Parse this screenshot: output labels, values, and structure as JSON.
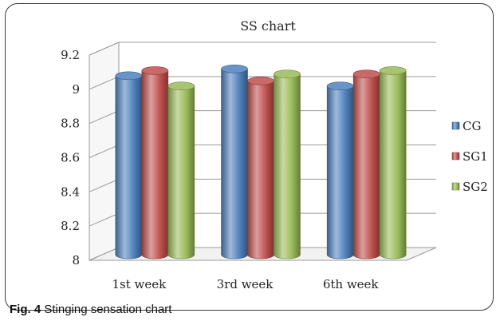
{
  "caption": {
    "label": "Fig. 4",
    "text": "Stinging sensation chart"
  },
  "chart_data": {
    "type": "bar",
    "title": "SS chart",
    "xlabel": "",
    "ylabel": "",
    "categories": [
      "1st week",
      "3rd week",
      "6th week"
    ],
    "series": [
      {
        "name": "CG",
        "values": [
          9.07,
          9.11,
          9.01
        ],
        "color": "#4f81bd"
      },
      {
        "name": "SG1",
        "values": [
          9.1,
          9.04,
          9.08
        ],
        "color": "#c0504d"
      },
      {
        "name": "SG2",
        "values": [
          9.01,
          9.08,
          9.1
        ],
        "color": "#9bbb59"
      }
    ],
    "ylim": [
      8,
      9.2
    ],
    "yticks": [
      "8",
      "8.2",
      "8.4",
      "8.6",
      "8.8",
      "9",
      "9.2"
    ],
    "grid": true,
    "legend": "right",
    "style": "3d-cylinder"
  }
}
